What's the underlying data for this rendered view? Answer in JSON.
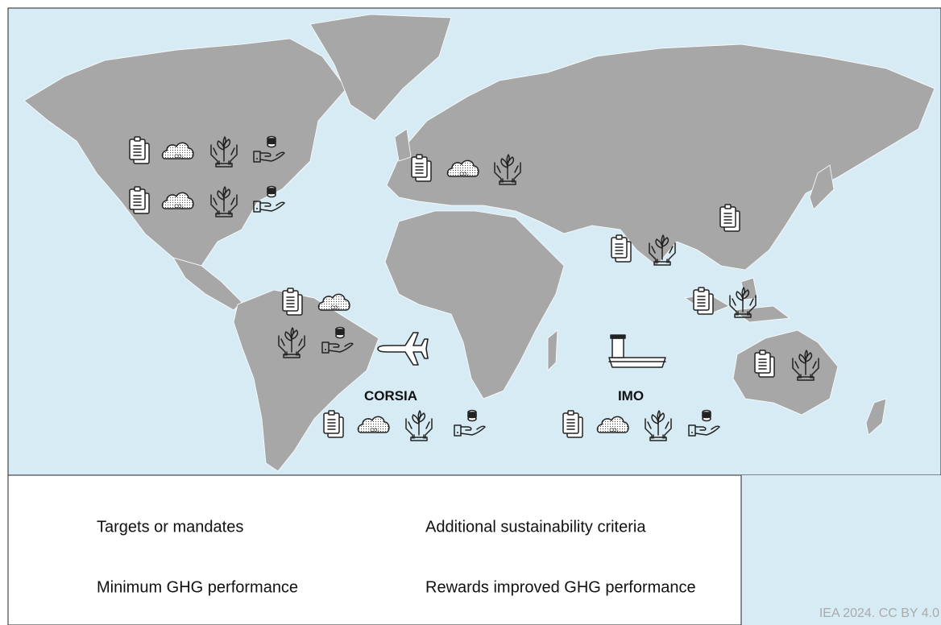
{
  "map": {
    "labels": [
      "CORSIA",
      "IMO"
    ],
    "icon_text": "CO₂",
    "legend": [
      "Targets or mandates",
      "Additional sustainability criteria",
      "Minimum GHG performance",
      "Rewards improved GHG performance"
    ],
    "credit": "IEA 2024. CC BY 4.0"
  }
}
